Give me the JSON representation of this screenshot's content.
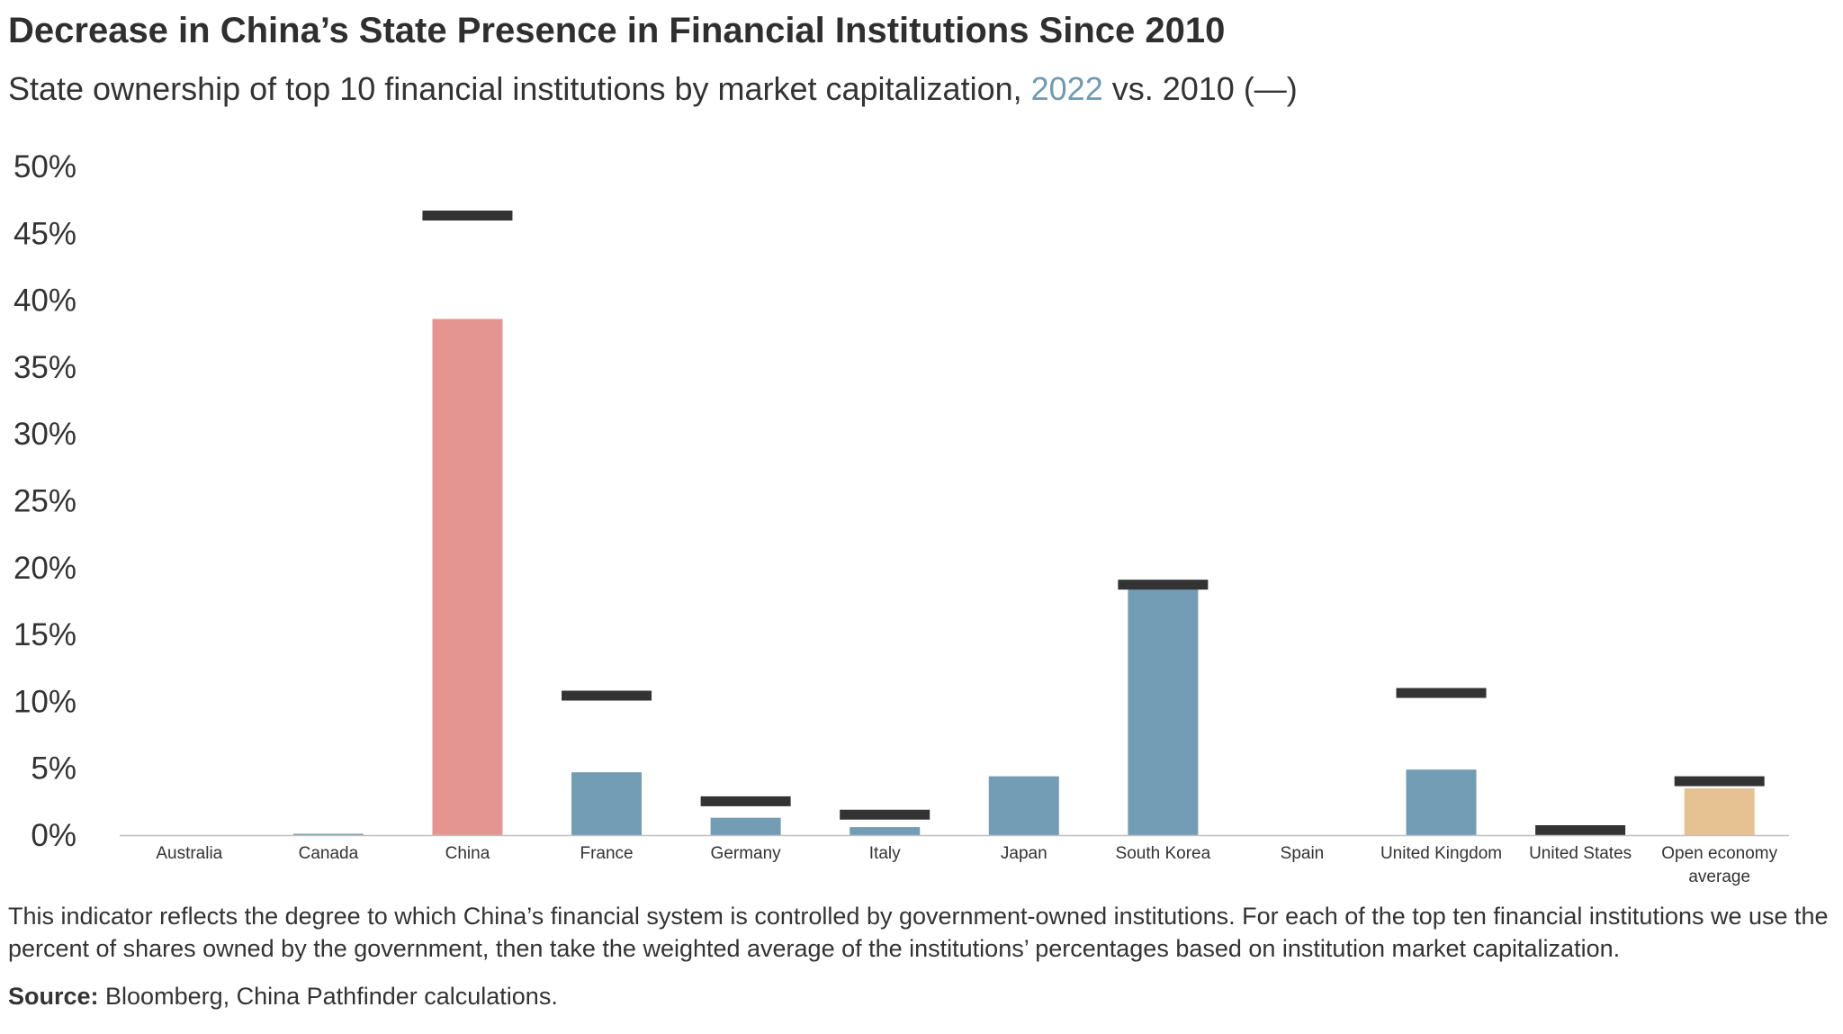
{
  "title": "Decrease in China’s State Presence in Financial Institutions Since 2010",
  "subtitle": {
    "prefix": "State ownership of top 10 financial institutions by market capitalization, ",
    "highlight": "2022",
    "suffix": " vs. 2010 (—)"
  },
  "note": "This indicator reflects the degree to which China’s financial system is controlled by government-owned institutions. For each of the top ten financial institutions we use the percent of shares owned by the government, then take the weighted average of the institutions’ percentages based on institution market capitalization.",
  "source": {
    "label": "Source:",
    "text": " Bloomberg, China Pathfinder calculations."
  },
  "colors": {
    "default_bar": "#729db4",
    "china_bar": "#e59591",
    "average_bar": "#e6c293",
    "marker_2010": "#333333",
    "highlight_2022": "#6f9bb2"
  },
  "chart_data": {
    "type": "bar",
    "title": "Decrease in China’s State Presence in Financial Institutions Since 2010",
    "subtitle": "State ownership of top 10 financial institutions by market capitalization, 2022 vs. 2010 (—)",
    "categories": [
      [
        "Australia"
      ],
      [
        "Canada"
      ],
      [
        "China"
      ],
      [
        "France"
      ],
      [
        "Germany"
      ],
      [
        "Italy"
      ],
      [
        "Japan"
      ],
      [
        "South Korea"
      ],
      [
        "Spain"
      ],
      [
        "United Kingdom"
      ],
      [
        "United States"
      ],
      [
        "Open economy",
        "average"
      ]
    ],
    "series": [
      {
        "name": "2022",
        "mark": "bar",
        "values": [
          0,
          0.1,
          38.6,
          4.7,
          1.3,
          0.6,
          4.4,
          18.7,
          0,
          4.9,
          0,
          3.5
        ]
      },
      {
        "name": "2010",
        "mark": "line-marker",
        "values": [
          null,
          null,
          46.7,
          10.8,
          2.9,
          1.9,
          null,
          19.1,
          null,
          11.0,
          0.4,
          4.4
        ]
      }
    ],
    "bar_colors": [
      "default",
      "default",
      "china",
      "default",
      "default",
      "default",
      "default",
      "default",
      "default",
      "default",
      "default",
      "average"
    ],
    "yticks": [
      "0%",
      "5%",
      "10%",
      "15%",
      "20%",
      "25%",
      "30%",
      "35%",
      "40%",
      "45%",
      "50%"
    ],
    "ylim": [
      0,
      50
    ],
    "xlabel": "",
    "ylabel": "",
    "grid": false,
    "legend": "none"
  }
}
